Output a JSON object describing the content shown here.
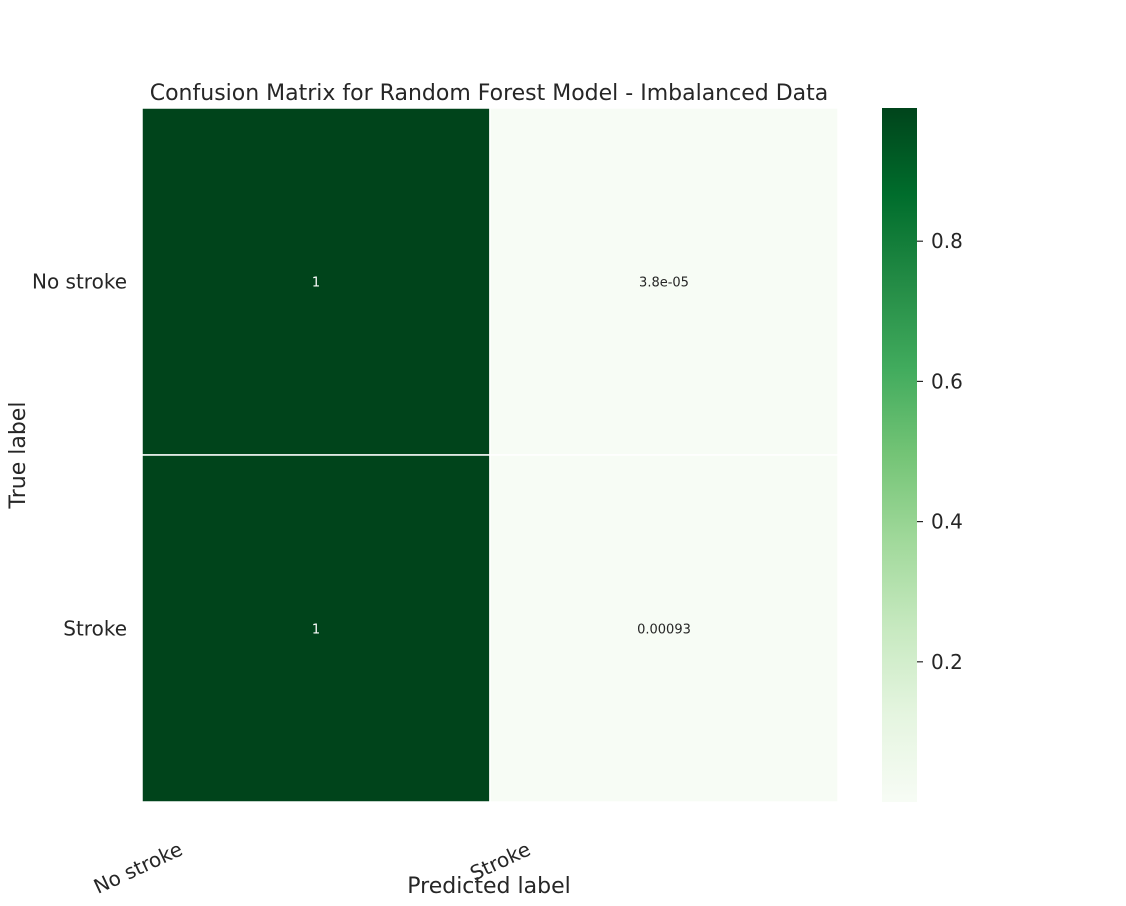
{
  "chart_data": {
    "type": "heatmap",
    "title": "Confusion Matrix for Random Forest Model - Imbalanced Data",
    "xlabel": "Predicted label",
    "ylabel": "True label",
    "x_categories": [
      "No stroke",
      "Stroke"
    ],
    "y_categories": [
      "No stroke",
      "Stroke"
    ],
    "values": [
      [
        1,
        3.8e-05
      ],
      [
        1,
        0.00093
      ]
    ],
    "annotations": [
      [
        "1",
        "3.8e-05"
      ],
      [
        "1",
        "0.00093"
      ]
    ],
    "colormap": "Greens",
    "colors": {
      "low": "#f7fcf5",
      "high": "#00441b",
      "grid_line": "#ffffff",
      "text": "#262626"
    },
    "colorbar": {
      "range": [
        0,
        1
      ],
      "ticks": [
        0.2,
        0.4,
        0.6,
        0.8
      ],
      "tick_labels": [
        "0.2",
        "0.4",
        "0.6",
        "0.8"
      ]
    },
    "grid": false,
    "legend": "colorbar-right"
  }
}
